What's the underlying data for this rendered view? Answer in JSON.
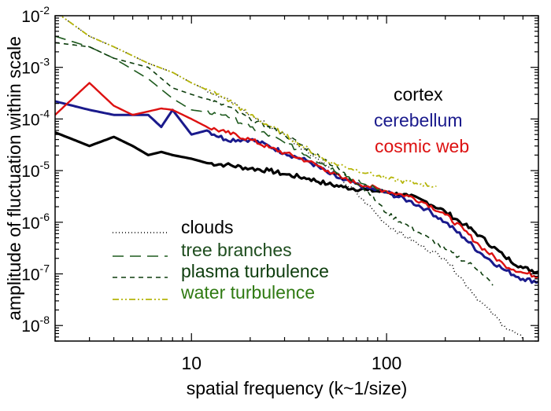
{
  "chart_data": {
    "type": "line",
    "xlabel": "spatial frequency (k~1/size)",
    "ylabel": "amplitude of fluctuation within scale",
    "xscale": "log",
    "yscale": "log",
    "xlim": [
      2,
      600
    ],
    "ylim": [
      5e-09,
      0.01
    ],
    "x_ticks": [
      {
        "value": 10,
        "label": "10"
      },
      {
        "value": 100,
        "label": "100"
      }
    ],
    "y_ticks": [
      {
        "value": 0.01,
        "base": "10",
        "exp": "-2"
      },
      {
        "value": 0.001,
        "base": "10",
        "exp": "-3"
      },
      {
        "value": 0.0001,
        "base": "10",
        "exp": "-4"
      },
      {
        "value": 1e-05,
        "base": "10",
        "exp": "-5"
      },
      {
        "value": 1e-06,
        "base": "10",
        "exp": "-6"
      },
      {
        "value": 1e-07,
        "base": "10",
        "exp": "-7"
      },
      {
        "value": 1e-08,
        "base": "10",
        "exp": "-8"
      }
    ],
    "legend_upper": {
      "placement": "top-right",
      "entries": [
        {
          "label": "cortex",
          "color": "#000000"
        },
        {
          "label": "cerebellum",
          "color": "#1a1a8c"
        },
        {
          "label": "cosmic web",
          "color": "#dd1111"
        }
      ]
    },
    "legend_lower": {
      "placement": "bottom-left",
      "entries": [
        {
          "label": "clouds",
          "color": "#000000",
          "dash": "1,3",
          "text_color": "#000000"
        },
        {
          "label": "tree branches",
          "color": "#1e5a1e",
          "dash": "14,8",
          "text_color": "#1e4d1e"
        },
        {
          "label": "plasma turbulence",
          "color": "#0d3d0d",
          "dash": "6,5",
          "text_color": "#0d3d0d"
        },
        {
          "label": "water turbulence",
          "color": "#b5b50a",
          "dash": "8,3,2,3,2,3",
          "text_color": "#2f7a12"
        }
      ]
    },
    "series": [
      {
        "name": "cortex",
        "color": "#000000",
        "width": 3.2,
        "dash": "",
        "x": [
          2,
          3,
          4,
          5,
          6,
          7,
          8,
          10,
          12,
          15,
          20,
          25,
          30,
          40,
          50,
          60,
          80,
          100,
          130,
          160,
          200,
          250,
          300,
          400,
          500,
          600
        ],
        "y": [
          5.5e-05,
          3e-05,
          4.5e-05,
          3e-05,
          2e-05,
          2.3e-05,
          2e-05,
          1.7e-05,
          1.4e-05,
          1.3e-05,
          1.1e-05,
          1e-05,
          8.5e-06,
          7e-06,
          5.5e-06,
          4.8e-06,
          4.2e-06,
          3.8e-06,
          3.2e-06,
          2.5e-06,
          1.6e-06,
          9e-07,
          5.5e-07,
          2.2e-07,
          1.3e-07,
          1.1e-07
        ]
      },
      {
        "name": "cerebellum",
        "color": "#1a1a8c",
        "width": 3,
        "dash": "",
        "x": [
          2,
          3,
          4,
          5,
          6,
          7,
          8,
          10,
          12,
          15,
          20,
          25,
          30,
          40,
          50,
          60,
          80,
          100,
          130,
          160,
          200,
          250,
          300,
          400,
          500,
          600
        ],
        "y": [
          0.00022,
          0.00015,
          0.00012,
          0.00012,
          0.00012,
          7e-05,
          0.00015,
          5e-05,
          6e-05,
          4e-05,
          4e-05,
          3e-05,
          2.2e-05,
          1.5e-05,
          9e-06,
          6.5e-06,
          4.6e-06,
          3.8e-06,
          2.6e-06,
          1.8e-06,
          1e-06,
          5e-07,
          2.6e-07,
          1.2e-07,
          8e-08,
          7e-08
        ]
      },
      {
        "name": "cosmic web",
        "color": "#dd1111",
        "width": 2.4,
        "dash": "",
        "x": [
          2,
          3,
          4,
          5,
          6,
          7,
          8,
          10,
          12,
          15,
          20,
          25,
          30,
          40,
          50,
          60,
          80,
          100,
          130,
          160,
          200,
          250,
          300,
          400,
          500,
          600
        ],
        "y": [
          0.00012,
          0.0005,
          0.00018,
          0.00012,
          0.00014,
          0.00016,
          0.00015,
          0.0001,
          7e-05,
          5.5e-05,
          4e-05,
          2.8e-05,
          2.2e-05,
          1.5e-05,
          1e-05,
          7e-06,
          5e-06,
          4e-06,
          3.2e-06,
          2.3e-06,
          1.4e-06,
          7e-07,
          3.5e-07,
          1.5e-07,
          1.05e-07,
          9e-08
        ]
      },
      {
        "name": "clouds",
        "color": "#000000",
        "width": 1.6,
        "dash": "1,3",
        "x": [
          2,
          3,
          4,
          6,
          8,
          10,
          15,
          20,
          30,
          50,
          80,
          100,
          150,
          200,
          300,
          400,
          500
        ],
        "y": [
          0.012,
          0.004,
          0.0025,
          0.0012,
          0.0008,
          0.0005,
          0.00025,
          0.00012,
          5e-05,
          1.2e-05,
          2.2e-06,
          9e-07,
          3.5e-07,
          2e-07,
          3e-08,
          1e-08,
          5.5e-09
        ]
      },
      {
        "name": "tree branches",
        "color": "#1e5a1e",
        "width": 1.6,
        "dash": "14,8",
        "x": [
          2,
          3,
          4,
          6,
          8,
          10,
          15,
          20,
          30,
          50,
          80,
          100
        ],
        "y": [
          0.004,
          0.0025,
          0.0015,
          0.0006,
          0.00025,
          0.00015,
          0.00012,
          7e-05,
          3.5e-05,
          1.2e-05,
          5e-06,
          4e-06
        ]
      },
      {
        "name": "plasma turbulence",
        "color": "#0d3d0d",
        "width": 1.6,
        "dash": "6,5",
        "x": [
          2,
          3,
          4,
          6,
          8,
          10,
          15,
          20,
          30,
          50,
          80,
          100,
          150,
          200,
          300,
          350
        ],
        "y": [
          0.003,
          0.0025,
          0.0015,
          0.001,
          0.0004,
          0.0003,
          0.00018,
          0.0001,
          5e-05,
          1.5e-05,
          4e-06,
          1.5e-06,
          6e-07,
          3e-07,
          1.2e-07,
          6e-08
        ]
      },
      {
        "name": "water turbulence",
        "color": "#b5b50a",
        "width": 1.8,
        "dash": "8,3,2,3,2,3",
        "x": [
          2,
          3,
          4,
          6,
          8,
          10,
          15,
          20,
          30,
          50,
          80,
          100,
          150,
          180
        ],
        "y": [
          0.012,
          0.004,
          0.0025,
          0.0012,
          0.0008,
          0.0005,
          0.00025,
          0.00012,
          5e-05,
          1.5e-05,
          9e-06,
          7e-06,
          5.5e-06,
          5e-06
        ]
      }
    ]
  }
}
